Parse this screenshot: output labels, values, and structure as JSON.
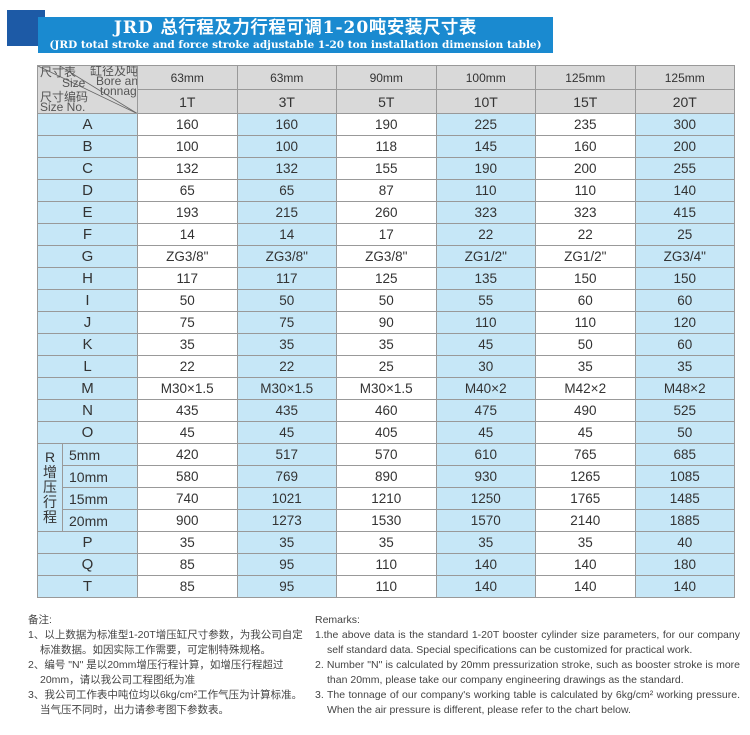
{
  "title": {
    "main": "JRD 总行程及力行程可调1-20吨安装尺寸表",
    "sub": "(JRD total stroke and force stroke adjustable 1-20 ton installation dimension table)"
  },
  "colors": {
    "banner": "#1a8ad0",
    "banner_square": "#1d5aa6",
    "column_blue": "#c6e7f7",
    "header_gray": "#d9d9d9"
  },
  "table": {
    "corner": {
      "top_cn": "尺寸表",
      "top_en": "Size",
      "right_cn": "缸径及吨位",
      "right_en1": "Bore and",
      "right_en2": "tonnage",
      "left_cn": "尺寸编码",
      "left_en": "Size No."
    },
    "bores": [
      "63mm",
      "63mm",
      "90mm",
      "100mm",
      "125mm",
      "125mm"
    ],
    "tonnages": [
      "1T",
      "3T",
      "5T",
      "10T",
      "15T",
      "20T"
    ],
    "rows": [
      {
        "label": "A",
        "values": [
          "160",
          "160",
          "190",
          "225",
          "235",
          "300"
        ]
      },
      {
        "label": "B",
        "values": [
          "100",
          "100",
          "118",
          "145",
          "160",
          "200"
        ]
      },
      {
        "label": "C",
        "values": [
          "132",
          "132",
          "155",
          "190",
          "200",
          "255"
        ]
      },
      {
        "label": "D",
        "values": [
          "65",
          "65",
          "87",
          "110",
          "110",
          "140"
        ]
      },
      {
        "label": "E",
        "values": [
          "193",
          "215",
          "260",
          "323",
          "323",
          "415"
        ]
      },
      {
        "label": "F",
        "values": [
          "14",
          "14",
          "17",
          "22",
          "22",
          "25"
        ]
      },
      {
        "label": "G",
        "values": [
          "ZG3/8\"",
          "ZG3/8\"",
          "ZG3/8\"",
          "ZG1/2\"",
          "ZG1/2\"",
          "ZG3/4\""
        ]
      },
      {
        "label": "H",
        "values": [
          "117",
          "117",
          "125",
          "135",
          "150",
          "150"
        ]
      },
      {
        "label": "I",
        "values": [
          "50",
          "50",
          "50",
          "55",
          "60",
          "60"
        ]
      },
      {
        "label": "J",
        "values": [
          "75",
          "75",
          "90",
          "110",
          "110",
          "120"
        ]
      },
      {
        "label": "K",
        "values": [
          "35",
          "35",
          "35",
          "45",
          "50",
          "60"
        ]
      },
      {
        "label": "L",
        "values": [
          "22",
          "22",
          "25",
          "30",
          "35",
          "35"
        ]
      },
      {
        "label": "M",
        "values": [
          "M30×1.5",
          "M30×1.5",
          "M30×1.5",
          "M40×2",
          "M42×2",
          "M48×2"
        ]
      },
      {
        "label": "N",
        "values": [
          "435",
          "435",
          "460",
          "475",
          "490",
          "525"
        ]
      },
      {
        "label": "O",
        "values": [
          "45",
          "45",
          "405",
          "45",
          "45",
          "50"
        ]
      }
    ],
    "r_group": {
      "label": [
        "R",
        "增",
        "压",
        "行",
        "程"
      ],
      "rows": [
        {
          "label": "5mm",
          "values": [
            "420",
            "517",
            "570",
            "610",
            "765",
            "685"
          ]
        },
        {
          "label": "10mm",
          "values": [
            "580",
            "769",
            "890",
            "930",
            "1265",
            "1085"
          ]
        },
        {
          "label": "15mm",
          "values": [
            "740",
            "1021",
            "1210",
            "1250",
            "1765",
            "1485"
          ]
        },
        {
          "label": "20mm",
          "values": [
            "900",
            "1273",
            "1530",
            "1570",
            "2140",
            "1885"
          ]
        }
      ]
    },
    "tail_rows": [
      {
        "label": "P",
        "values": [
          "35",
          "35",
          "35",
          "35",
          "35",
          "40"
        ]
      },
      {
        "label": "Q",
        "values": [
          "85",
          "95",
          "110",
          "140",
          "140",
          "180"
        ]
      },
      {
        "label": "T",
        "values": [
          "85",
          "95",
          "110",
          "140",
          "140",
          "140"
        ]
      }
    ]
  },
  "notes_cn": {
    "heading": "备注:",
    "items": [
      "1、以上数据为标准型1-20T增压缸尺寸参数，为我公司自定标准数据。如因实际工作需要，可定制特殊规格。",
      "2、编号 \"N\" 是以20mm增压行程计算，如增压行程超过20mm，请以我公司工程图纸为准",
      "3、我公司工作表中吨位均以6kg/cm²工作气压为计算标准。当气压不同时，出力请参考图下参数表。"
    ]
  },
  "notes_en": {
    "heading": "Remarks:",
    "items": [
      "1.the above data is the standard 1-20T booster cylinder size parameters, for our company self standard data. Special specifications can be customized for practical work.",
      "2. Number \"N\" is calculated by 20mm pressurization stroke, such as booster stroke is more than 20mm, please take our company engineering drawings as the standard.",
      "3. The tonnage of our company's working table is calculated by 6kg/cm² working pressure. When the air pressure is different, please refer to the chart below."
    ]
  }
}
